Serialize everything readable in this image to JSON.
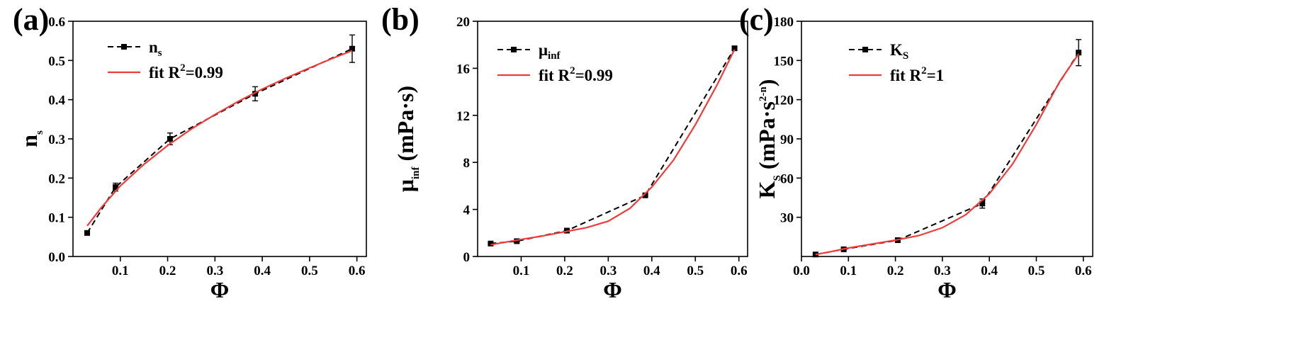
{
  "chart_data": [
    {
      "panel": "(a)",
      "type": "line",
      "xlabel": "Φ",
      "ylabel": "n",
      "ylabel_sub": "s",
      "xlim": [
        0.0,
        0.62
      ],
      "ylim": [
        0.0,
        0.6
      ],
      "xticks": [
        "0.1",
        "0.2",
        "0.3",
        "0.4",
        "0.5",
        "0.6"
      ],
      "yticks": [
        "0.0",
        "0.1",
        "0.2",
        "0.3",
        "0.4",
        "0.5",
        "0.6"
      ],
      "legend": {
        "data_main": "n",
        "data_sub": "s",
        "data_sup": "",
        "fit_prefix": "fit  R",
        "fit_sup": "2",
        "fit_suffix": "=0.99"
      },
      "series": [
        {
          "kind": "data",
          "x": [
            0.03,
            0.09,
            0.205,
            0.385,
            0.59
          ],
          "y": [
            0.06,
            0.177,
            0.3,
            0.415,
            0.53
          ],
          "yerr": [
            0.005,
            0.01,
            0.015,
            0.018,
            0.035
          ]
        },
        {
          "kind": "fit",
          "x": [
            0.03,
            0.06,
            0.1,
            0.15,
            0.2,
            0.25,
            0.3,
            0.35,
            0.4,
            0.45,
            0.5,
            0.55,
            0.59
          ],
          "y": [
            0.078,
            0.125,
            0.18,
            0.235,
            0.283,
            0.325,
            0.362,
            0.396,
            0.427,
            0.455,
            0.481,
            0.506,
            0.525
          ]
        }
      ]
    },
    {
      "panel": "(b)",
      "type": "line",
      "xlabel": "Φ",
      "ylabel": "μ",
      "ylabel_sub": "inf",
      "ylabel_unit": "  (mPa·s)",
      "xlim": [
        0.0,
        0.62
      ],
      "ylim": [
        0,
        20
      ],
      "xticks": [
        "0.1",
        "0.2",
        "0.3",
        "0.4",
        "0.5",
        "0.6"
      ],
      "yticks": [
        "0",
        "4",
        "8",
        "12",
        "16",
        "20"
      ],
      "legend": {
        "data_main": "μ",
        "data_sub": "inf",
        "data_sup": "",
        "fit_prefix": "fit  R",
        "fit_sup": "2",
        "fit_suffix": "=0.99"
      },
      "series": [
        {
          "kind": "data",
          "x": [
            0.03,
            0.09,
            0.205,
            0.385,
            0.59
          ],
          "y": [
            1.1,
            1.3,
            2.2,
            5.2,
            17.7
          ],
          "yerr": [
            0.05,
            0.05,
            0.08,
            0.12,
            0.15
          ]
        },
        {
          "kind": "fit",
          "x": [
            0.03,
            0.1,
            0.15,
            0.2,
            0.25,
            0.3,
            0.35,
            0.4,
            0.45,
            0.5,
            0.55,
            0.59
          ],
          "y": [
            1.0,
            1.45,
            1.75,
            2.1,
            2.45,
            3.0,
            4.1,
            5.9,
            8.2,
            11.2,
            14.6,
            17.6
          ]
        }
      ]
    },
    {
      "panel": "(c)",
      "type": "line",
      "xlabel": "Φ",
      "ylabel": "K",
      "ylabel_sub": "S",
      "ylabel_unit_prefix": "  (mPa·s",
      "ylabel_unit_sup": "2-n",
      "ylabel_unit_suffix": ")",
      "xlim": [
        0.0,
        0.62
      ],
      "ylim": [
        0,
        180
      ],
      "xticks": [
        "0.0",
        "0.1",
        "0.2",
        "0.3",
        "0.4",
        "0.5",
        "0.6"
      ],
      "yticks": [
        "30",
        "60",
        "90",
        "120",
        "150",
        "180"
      ],
      "legend": {
        "data_main": "K",
        "data_sub": "S",
        "data_sup": "",
        "fit_prefix": "fit  R",
        "fit_sup": "2",
        "fit_suffix": "=1"
      },
      "series": [
        {
          "kind": "data",
          "x": [
            0.03,
            0.09,
            0.205,
            0.385,
            0.59
          ],
          "y": [
            1.5,
            5.5,
            12.5,
            40.5,
            156
          ],
          "yerr": [
            0.5,
            1.2,
            1.5,
            3.5,
            10
          ]
        },
        {
          "kind": "fit",
          "x": [
            0.03,
            0.06,
            0.1,
            0.15,
            0.2,
            0.25,
            0.3,
            0.35,
            0.4,
            0.45,
            0.5,
            0.55,
            0.59
          ],
          "y": [
            1.5,
            3.5,
            6.5,
            9.5,
            12.5,
            16.0,
            22.0,
            32.0,
            48.0,
            71.0,
            101.0,
            134.0,
            155.0
          ]
        }
      ]
    }
  ],
  "colors": {
    "fit": "#ef3b3b",
    "data": "#000000",
    "axis": "#000000"
  }
}
